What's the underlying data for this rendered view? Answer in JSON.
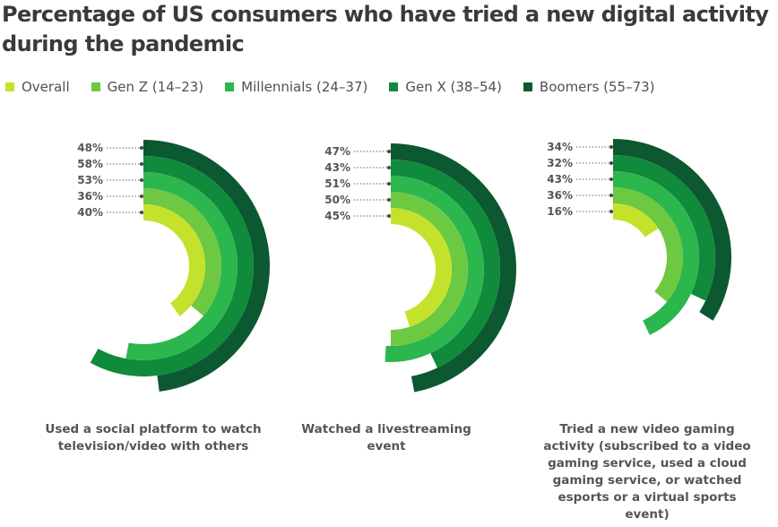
{
  "chart_data": {
    "type": "radial-bar",
    "title": "Percentage of US consumers who have tried a new digital activity during the pandemic",
    "series": [
      {
        "name": "Overall",
        "color": "#c4e22c"
      },
      {
        "name": "Gen Z (14–23)",
        "color": "#6dc842"
      },
      {
        "name": "Millennials (24–37)",
        "color": "#2cb64e"
      },
      {
        "name": "Gen X (38–54)",
        "color": "#108a3b"
      },
      {
        "name": "Boomers (55–73)",
        "color": "#0c5830"
      }
    ],
    "charts": [
      {
        "caption": "Used a social platform to watch television/video with others",
        "labels": [
          "40%",
          "36%",
          "53%",
          "58%",
          "48%"
        ],
        "values": [
          40,
          36,
          53,
          58,
          48
        ]
      },
      {
        "caption": "Watched a livestreaming event",
        "labels": [
          "45%",
          "50%",
          "51%",
          "43%",
          "47%"
        ],
        "values": [
          45,
          50,
          51,
          43,
          47
        ]
      },
      {
        "caption": "Tried a new video gaming activity (subscribed to a video gaming service, used a cloud gaming service, or watched esports or a virtual sports event)",
        "labels": [
          "16%",
          "36%",
          "43%",
          "32%",
          "34%"
        ],
        "values": [
          16,
          36,
          43,
          32,
          34
        ]
      }
    ]
  }
}
